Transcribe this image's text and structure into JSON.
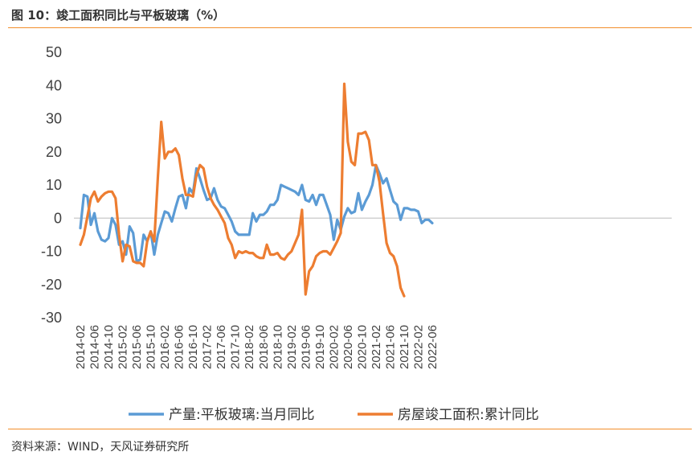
{
  "figure": {
    "title": "图 10：竣工面积同比与平板玻璃（%）",
    "source": "资料来源：WIND，天风证券研究所"
  },
  "colors": {
    "accent": "#f28e2b",
    "series1": "#5b9bd5",
    "series2": "#ed7d31",
    "zero_line": "#c9c9c9"
  },
  "chart_data": {
    "type": "line",
    "title": "竣工面积同比与平板玻璃（%）",
    "ylim": [
      -30,
      50
    ],
    "y_ticks": [
      50,
      40,
      30,
      20,
      10,
      0,
      -10,
      -20,
      -30
    ],
    "x_tick_labels": [
      "2014-02",
      "2014-06",
      "2014-10",
      "2015-02",
      "2015-06",
      "2015-10",
      "2016-02",
      "2016-06",
      "2016-10",
      "2017-02",
      "2017-06",
      "2017-10",
      "2018-02",
      "2018-06",
      "2018-10",
      "2019-02",
      "2019-06",
      "2019-10",
      "2020-02",
      "2020-06",
      "2020-10",
      "2021-02",
      "2021-06",
      "2021-10",
      "2022-02",
      "2022-06"
    ],
    "legend_position": "bottom",
    "grid": false,
    "series": [
      {
        "name": "产量:平板玻璃:当月同比",
        "start": "2014-02",
        "values": [
          -3,
          7,
          6.5,
          -2,
          1.5,
          -4,
          -6.5,
          -7,
          -6,
          0,
          -2,
          -8,
          -7,
          -11,
          -2.5,
          -4.5,
          -13,
          -12.5,
          -5,
          -7,
          -4,
          -11,
          -5,
          -1.5,
          2,
          1.5,
          -1,
          3,
          6.5,
          7,
          3,
          9,
          7.5,
          15,
          12,
          8.5,
          5.5,
          6,
          9,
          5.5,
          3.5,
          3,
          1,
          -1,
          -4,
          -5,
          -5,
          -5,
          -5,
          1.5,
          -1,
          1,
          1,
          2,
          4,
          4,
          5.5,
          10,
          9.5,
          9,
          8.5,
          8,
          7,
          10,
          5.5,
          5,
          7,
          4,
          7,
          7,
          4,
          1,
          -6.5,
          -0.5,
          -3.5,
          0.5,
          3,
          1.5,
          2,
          7.5,
          2.5,
          5,
          7,
          10,
          16,
          13.5,
          10.5,
          12,
          8.5,
          5,
          4,
          -0.5,
          3,
          3,
          2.5,
          2.5,
          2,
          -1.5,
          -0.5,
          -0.5,
          -1.5
        ]
      },
      {
        "name": "房屋竣工面积:累计同比",
        "start": "2014-02",
        "values": [
          -8,
          -5,
          0.5,
          6,
          8,
          5,
          6.5,
          7.5,
          8,
          8,
          6,
          -5,
          -13,
          -8,
          -8.5,
          -13,
          -13.5,
          -13.5,
          -14.5,
          -7,
          -4,
          -7,
          12,
          29,
          18,
          20,
          20,
          21,
          19,
          12,
          7,
          7,
          6.5,
          13,
          16,
          15,
          9.5,
          6,
          4,
          2.5,
          0.5,
          -1.5,
          -6,
          -8,
          -12,
          -10,
          -10.5,
          -10,
          -10.5,
          -10.5,
          -11.5,
          -12,
          -12,
          -8,
          -11,
          -11,
          -10.5,
          -12,
          -12.5,
          -11,
          -10,
          -7.5,
          -5,
          2.5,
          -23,
          -16,
          -14.5,
          -11.5,
          -10.5,
          -10,
          -10,
          -11,
          -9,
          -7,
          -4.5,
          40.5,
          23,
          17,
          16,
          25.5,
          25.5,
          26,
          23.5,
          16,
          16,
          11,
          1.5,
          -7.5,
          -10.5,
          -11.5,
          -14.5,
          -21,
          -23.5
        ]
      }
    ]
  }
}
